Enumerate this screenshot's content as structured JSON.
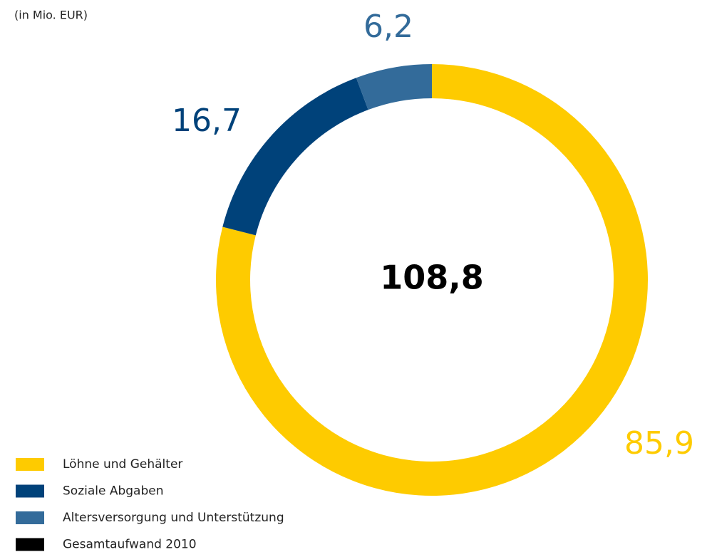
{
  "chart_data": {
    "type": "donut",
    "subtitle": "(in Mio. EUR)",
    "series": [
      {
        "name": "Löhne und Gehälter",
        "color": "#fecb00",
        "values": [
          85.9
        ],
        "value_labels": [
          "85,9"
        ]
      },
      {
        "name": "Soziale Abgaben",
        "color": "#00427a",
        "values": [
          16.7
        ],
        "value_labels": [
          "16,7"
        ]
      },
      {
        "name": "Altersversorgung und Unterstützung",
        "color": "#336b9a",
        "values": [
          6.2
        ],
        "value_labels": [
          "6,2"
        ]
      }
    ],
    "total": {
      "name": "Gesamtaufwand 2010",
      "color": "#000000",
      "value": 108.8,
      "label": "108,8"
    }
  }
}
